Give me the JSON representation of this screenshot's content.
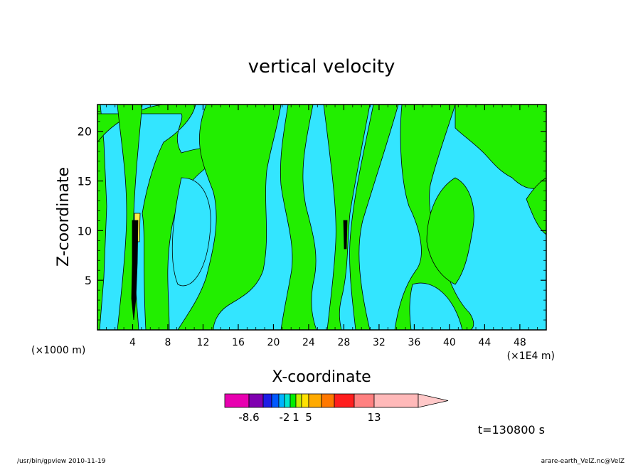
{
  "chart_data": {
    "type": "heatmap",
    "title": "vertical velocity",
    "xlabel": "X-coordinate",
    "ylabel": "Z-coordinate",
    "x_unit_left": "(×1000 m)",
    "x_unit_right": "(×1E4 m)",
    "xlim": [
      0,
      51
    ],
    "ylim": [
      0,
      22.7
    ],
    "x_ticks": [
      4,
      8,
      12,
      16,
      20,
      24,
      28,
      32,
      36,
      40,
      44,
      48
    ],
    "x_tick_labels": [
      "4",
      "8",
      "12",
      "16",
      "20",
      "24",
      "28",
      "32",
      "36",
      "40",
      "44",
      "48"
    ],
    "y_ticks": [
      5,
      10,
      15,
      20
    ],
    "y_tick_labels": [
      "5",
      "10",
      "15",
      "20"
    ],
    "grid": false,
    "time_label": "t=130800 s",
    "footer_left": "/usr/bin/gpview   2010-11-19",
    "footer_right": "arare-earth_VelZ.nc@VelZ",
    "colors": {
      "background_negative": "#33e5ff",
      "positive": "#22ee00",
      "strong_positive": "#ffee44",
      "strong_negative": "#000000"
    },
    "colorbar": {
      "colors": [
        "#e800b0",
        "#8000b0",
        "#1d1de6",
        "#0058ff",
        "#00b4ff",
        "#00e6d0",
        "#00ee00",
        "#c8ee00",
        "#ffe100",
        "#ffaa00",
        "#ff7800",
        "#ff1e1e",
        "#ff8080",
        "#ffb9b9",
        "#ffc8c8"
      ],
      "labels": [
        {
          "text": "-8.6",
          "index": 0
        },
        {
          "text": "-2",
          "index": 4
        },
        {
          "text": "1",
          "index": 6
        },
        {
          "text": "5",
          "index": 8
        },
        {
          "text": "13",
          "index": 12
        }
      ]
    }
  }
}
